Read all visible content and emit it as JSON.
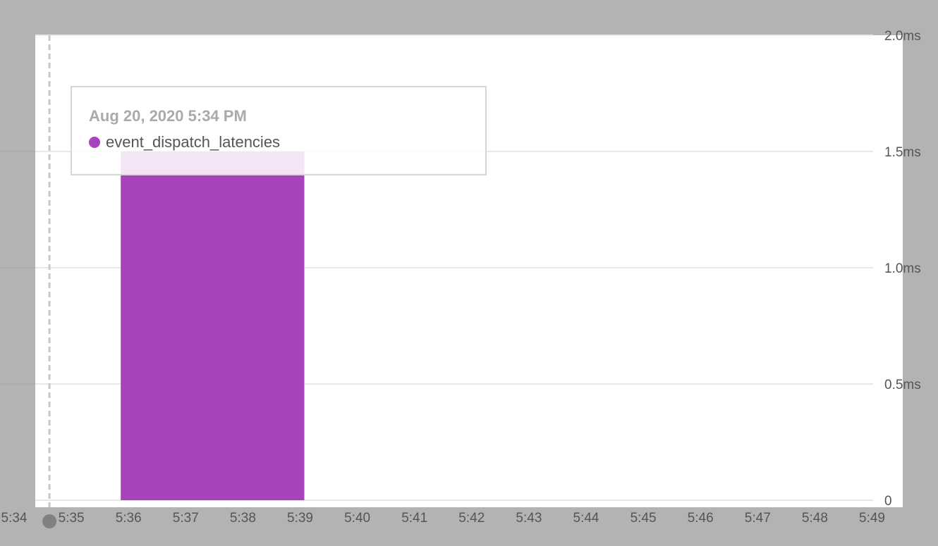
{
  "chart_data": {
    "type": "bar",
    "y_unit": "ms",
    "ylim": [
      0,
      2.0
    ],
    "y_ticks": [
      {
        "value": 0,
        "label": "0"
      },
      {
        "value": 0.5,
        "label": "0.5ms"
      },
      {
        "value": 1.0,
        "label": "1.0ms"
      },
      {
        "value": 1.5,
        "label": "1.5ms"
      },
      {
        "value": 2.0,
        "label": "2.0ms"
      }
    ],
    "x_ticks": [
      "5:34",
      "5:35",
      "5:36",
      "5:37",
      "5:38",
      "5:39",
      "5:40",
      "5:41",
      "5:42",
      "5:43",
      "5:44",
      "5:45",
      "5:46",
      "5:47",
      "5:48",
      "5:49"
    ],
    "xlim": [
      "5:34",
      "5:49"
    ],
    "grid": true,
    "y_axis_position": "right",
    "series": [
      {
        "name": "event_dispatch_latencies",
        "color": "#a843bb",
        "bars": [
          {
            "start": "5:36",
            "end": "5:39",
            "value": 1.5
          }
        ]
      }
    ],
    "cursor": {
      "time": "5:35"
    }
  },
  "tooltip": {
    "date": "Aug 20, 2020 5:34 PM",
    "series_name": "event_dispatch_latencies",
    "series_color": "#a843bb"
  }
}
